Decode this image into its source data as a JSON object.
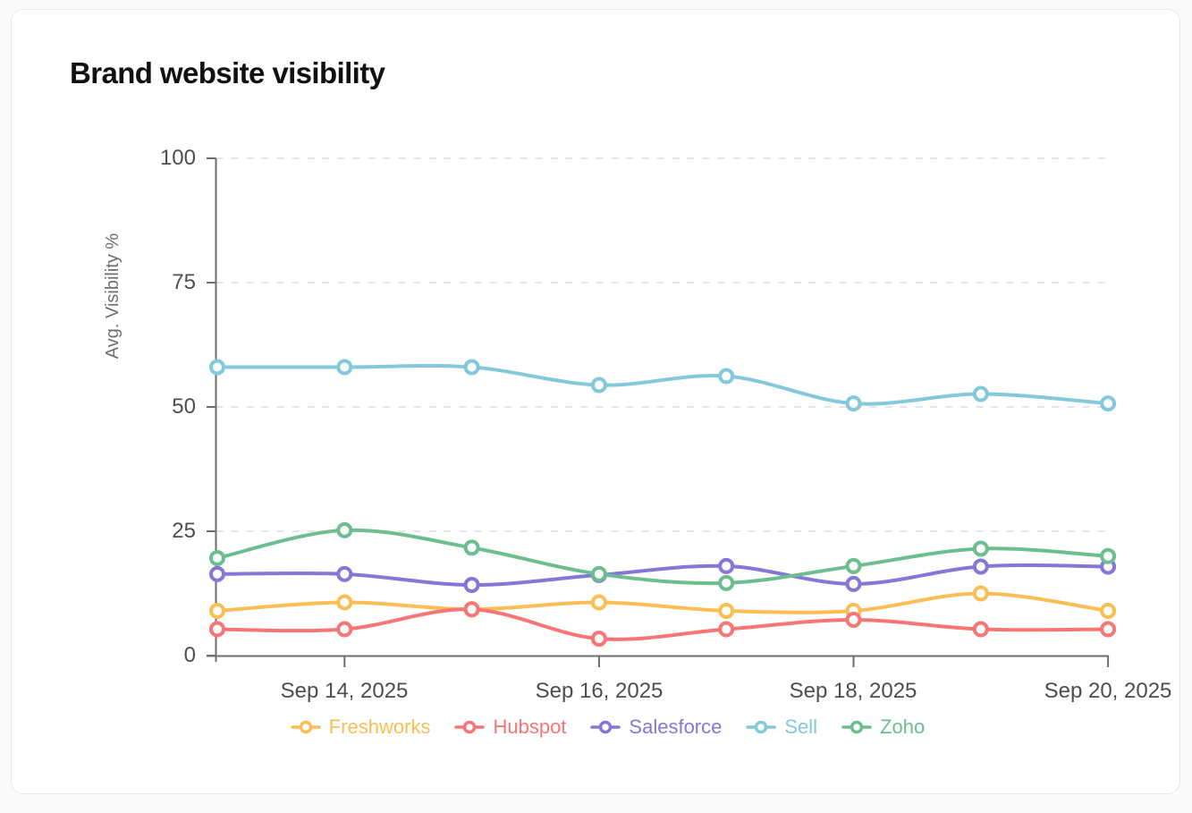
{
  "page": {
    "title": "Brand website visibility"
  },
  "chart_data": {
    "type": "line",
    "title": "Brand website visibility",
    "xlabel": "",
    "ylabel": "Avg. Visibility %",
    "ylim": [
      0,
      100
    ],
    "yticks": [
      0,
      25,
      50,
      75,
      100
    ],
    "grid": "horizontal-dashed",
    "legend_position": "bottom",
    "marker_style": "hollow-circle",
    "x": [
      "Sep 13, 2025",
      "Sep 14, 2025",
      "Sep 15, 2025",
      "Sep 16, 2025",
      "Sep 17, 2025",
      "Sep 18, 2025",
      "Sep 19, 2025",
      "Sep 20, 2025"
    ],
    "x_tick_labels": [
      "Sep 14, 2025",
      "Sep 16, 2025",
      "Sep 18, 2025",
      "Sep 20, 2025"
    ],
    "x_tick_indices": [
      1,
      3,
      5,
      7
    ],
    "series": [
      {
        "name": "Freshworks",
        "color": "#FBBE55",
        "values": [
          9.0,
          10.7,
          9.3,
          10.7,
          9.0,
          9.0,
          12.5,
          9.0
        ]
      },
      {
        "name": "Hubspot",
        "color": "#F87575",
        "values": [
          5.3,
          5.3,
          9.3,
          3.4,
          5.3,
          7.2,
          5.3,
          5.3
        ]
      },
      {
        "name": "Salesforce",
        "color": "#8477D7",
        "values": [
          16.4,
          16.4,
          14.2,
          16.2,
          18.0,
          14.4,
          17.9,
          17.9
        ]
      },
      {
        "name": "Sell",
        "color": "#84C8DC",
        "values": [
          58.0,
          58.0,
          58.0,
          54.4,
          56.2,
          50.7,
          52.6,
          50.7
        ]
      },
      {
        "name": "Zoho",
        "color": "#6CBE8E",
        "values": [
          19.6,
          25.2,
          21.7,
          16.4,
          14.6,
          18.0,
          21.5,
          20.0
        ]
      }
    ]
  }
}
